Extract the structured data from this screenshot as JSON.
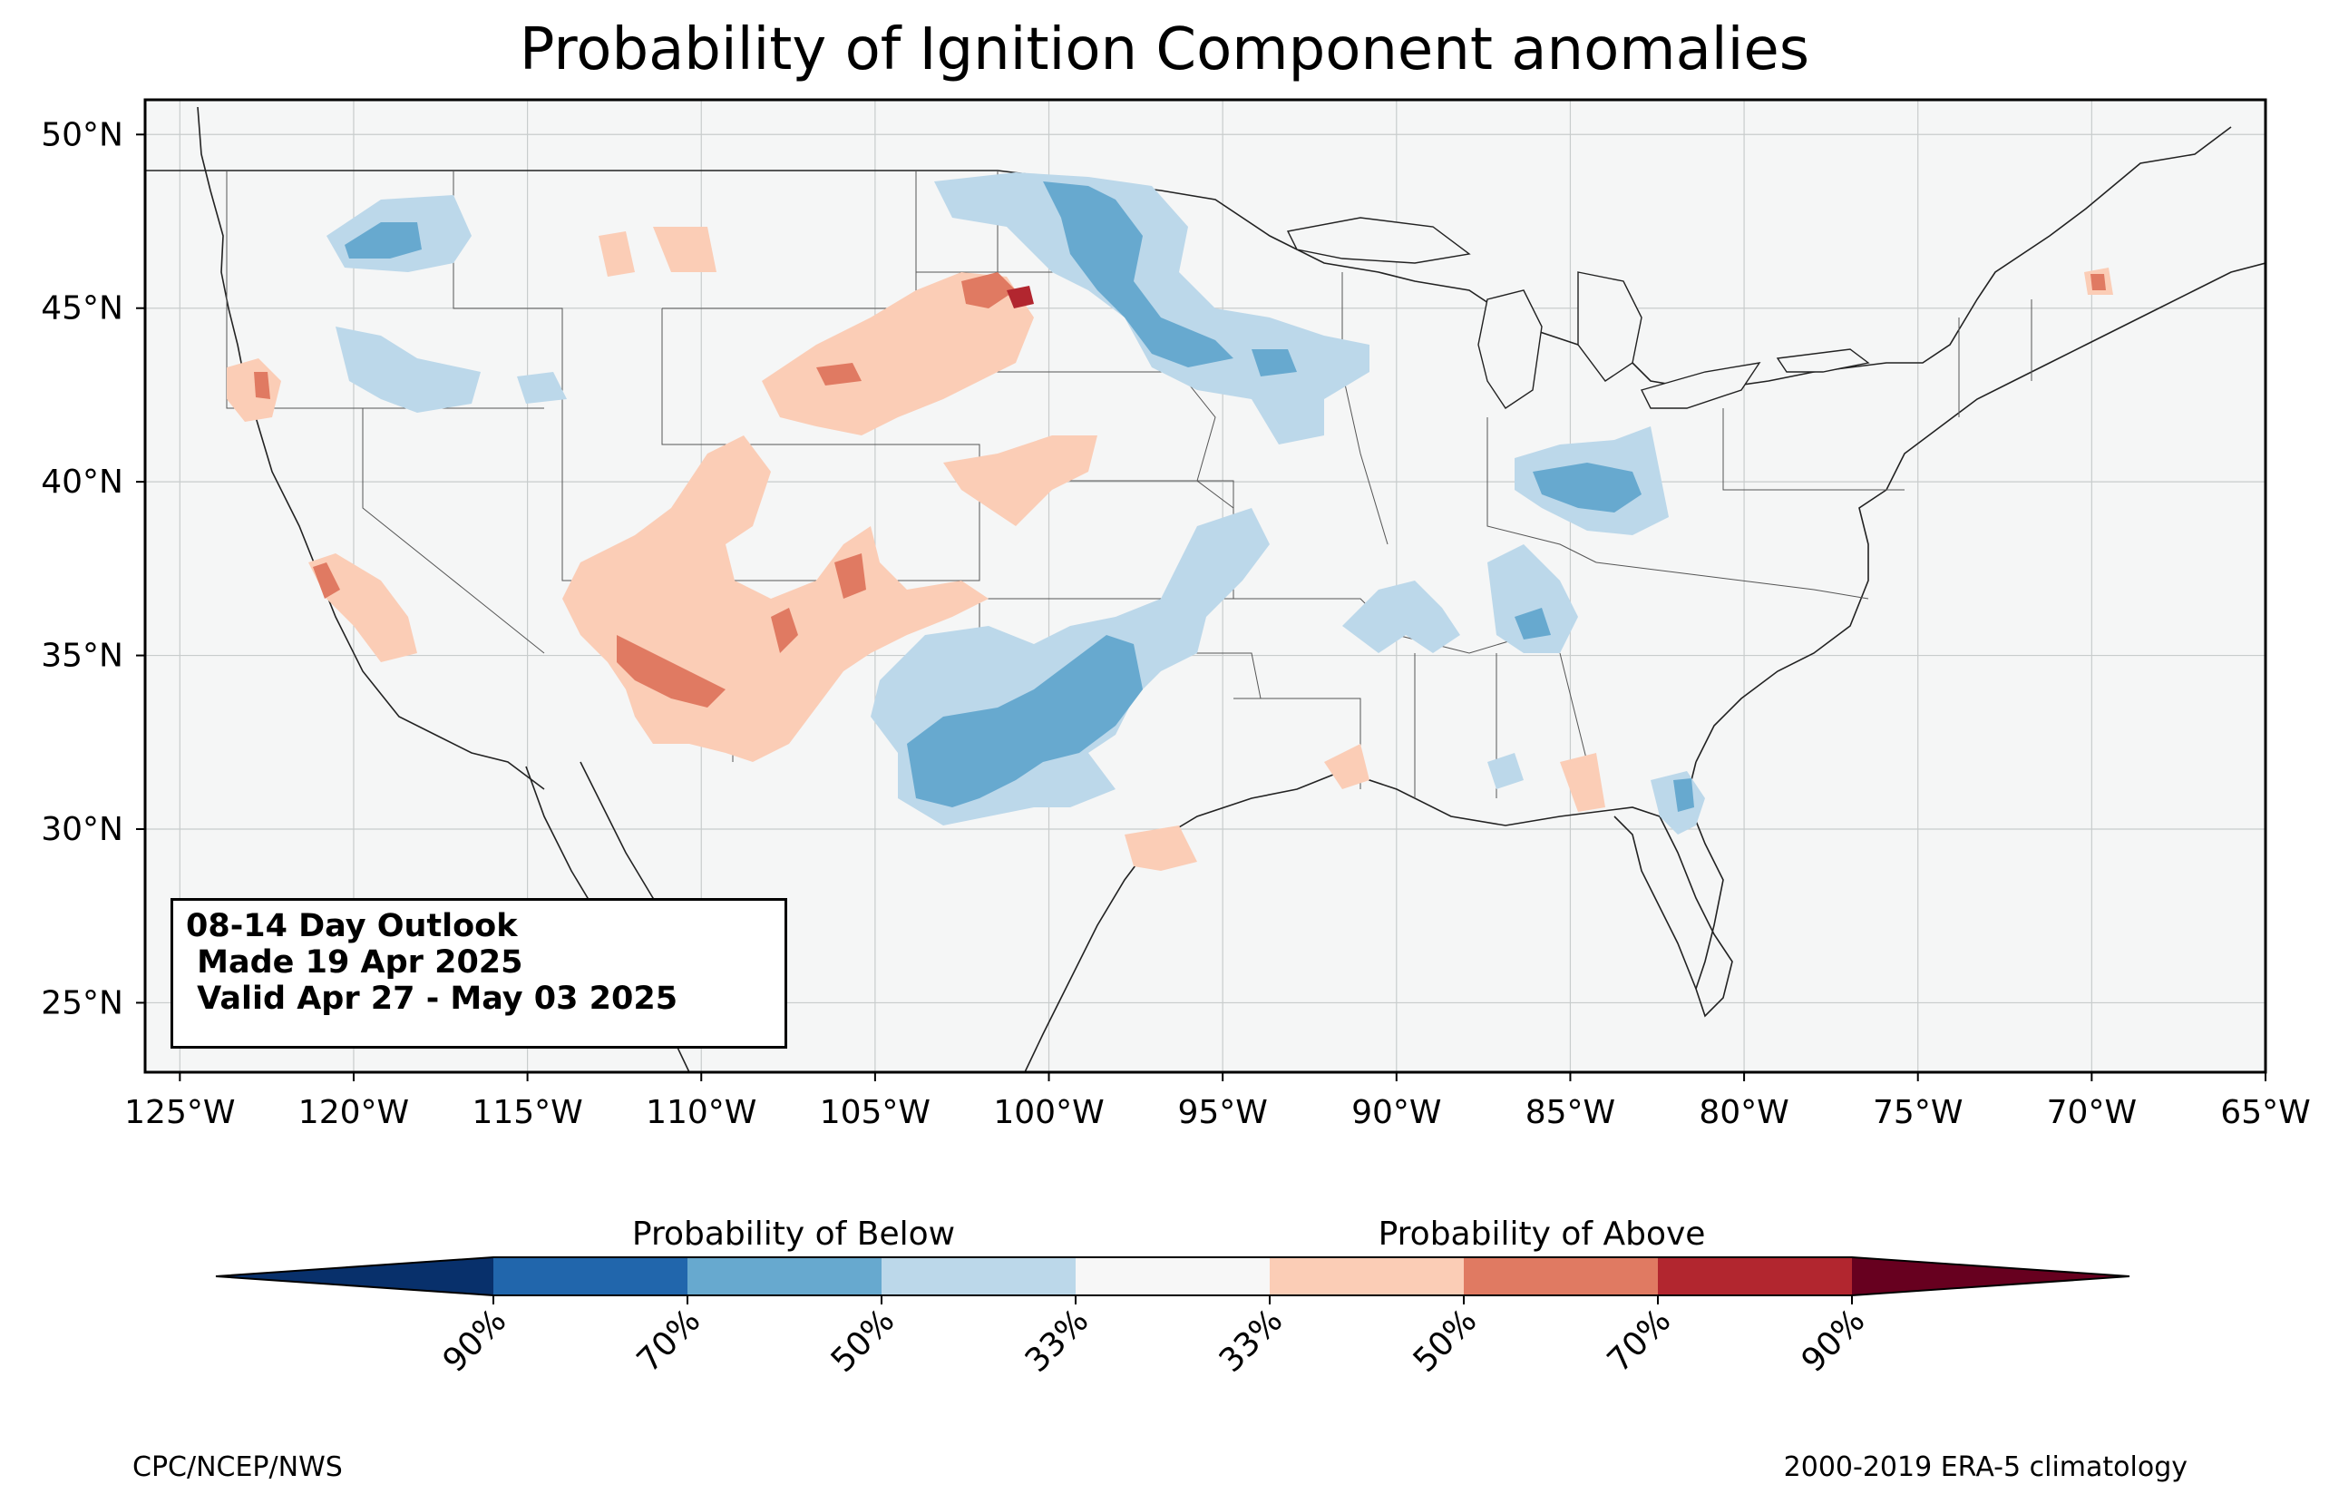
{
  "title": "Probability of Ignition Component anomalies",
  "info_box": {
    "line1": "08-14 Day Outlook",
    "line2": " Made 19 Apr 2025",
    "line3": " Valid Apr 27 - May 03 2025"
  },
  "lat_labels": [
    "50°N",
    "45°N",
    "40°N",
    "35°N",
    "30°N",
    "25°N"
  ],
  "lon_labels": [
    "125°W",
    "120°W",
    "115°W",
    "110°W",
    "105°W",
    "100°W",
    "95°W",
    "90°W",
    "85°W",
    "80°W",
    "75°W",
    "70°W",
    "65°W"
  ],
  "colorbar": {
    "below_label": "Probability of Below",
    "above_label": "Probability of Above",
    "tick_labels": [
      "90%",
      "70%",
      "50%",
      "33%",
      "33%",
      "50%",
      "70%",
      "90%"
    ],
    "colors": [
      "#08306b",
      "#2166ac",
      "#67a9cf",
      "#bcd8ea",
      "#f7f7f7",
      "#fbcdb6",
      "#e07a62",
      "#b2262f",
      "#67001f"
    ]
  },
  "footer_left": "CPC/NCEP/NWS",
  "footer_right": "2000-2019 ERA-5 climatology",
  "colors": {
    "map_background": "#f5f6f6",
    "below_33": "#bcd8ea",
    "below_50": "#67a9cf",
    "below_70": "#2166ac",
    "above_33": "#fbcdb6",
    "above_50": "#e07a62",
    "above_70": "#b2262f"
  }
}
